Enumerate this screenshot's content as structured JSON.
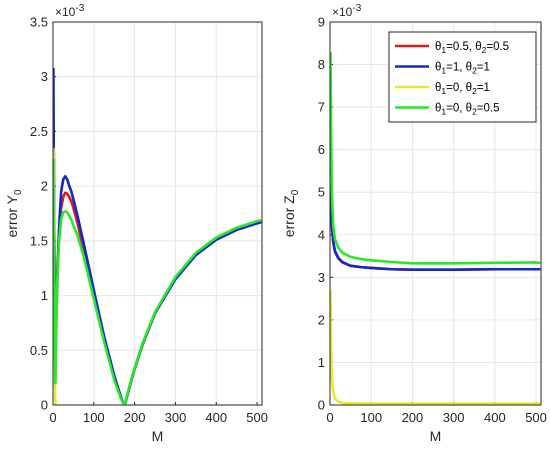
{
  "chart_data": [
    {
      "type": "line",
      "title": "",
      "xlabel": "M",
      "ylabel": "error Y",
      "ylabel_subscript": "0",
      "y_multiplier": "×10",
      "y_multiplier_exp": "-3",
      "xlim": [
        0,
        512
      ],
      "ylim": [
        0,
        3.5
      ],
      "x_ticks": [
        "0",
        "100",
        "200",
        "300",
        "400",
        "500"
      ],
      "y_ticks": [
        "0",
        "0.5",
        "1",
        "1.5",
        "2",
        "2.5",
        "3",
        "3.5"
      ],
      "grid": true,
      "series": [
        {
          "id": "s1",
          "color": "#d62020",
          "x": [
            1,
            2,
            4,
            6,
            10,
            15,
            20,
            25,
            30,
            35,
            40,
            45,
            50,
            60,
            75,
            100,
            125,
            150,
            165,
            172,
            176,
            180,
            185,
            190,
            200,
            220,
            250,
            300,
            350,
            400,
            450,
            500,
            510
          ],
          "y": [
            0.8,
            2.3,
            1.0,
            0.4,
            1.2,
            1.6,
            1.8,
            1.9,
            1.94,
            1.93,
            1.9,
            1.86,
            1.8,
            1.66,
            1.42,
            1.0,
            0.6,
            0.25,
            0.08,
            0.02,
            0.0,
            0.06,
            0.13,
            0.2,
            0.33,
            0.56,
            0.84,
            1.16,
            1.38,
            1.52,
            1.61,
            1.67,
            1.68
          ]
        },
        {
          "id": "s2",
          "color": "#1428c8",
          "x": [
            1,
            2,
            3,
            5,
            8,
            12,
            16,
            20,
            25,
            30,
            35,
            40,
            45,
            50,
            60,
            75,
            100,
            125,
            150,
            165,
            172,
            176,
            180,
            185,
            190,
            200,
            220,
            250,
            300,
            350,
            400,
            450,
            500,
            510
          ],
          "y": [
            3.08,
            2.2,
            1.6,
            0.9,
            0.8,
            1.3,
            1.7,
            1.95,
            2.06,
            2.09,
            2.06,
            2.0,
            1.95,
            1.88,
            1.73,
            1.48,
            1.05,
            0.63,
            0.27,
            0.09,
            0.02,
            0.0,
            0.06,
            0.13,
            0.2,
            0.33,
            0.56,
            0.84,
            1.15,
            1.37,
            1.51,
            1.6,
            1.66,
            1.67
          ]
        },
        {
          "id": "s3",
          "color": "#e8e830",
          "x": [
            1,
            2,
            3,
            4,
            6
          ],
          "y": [
            2.35,
            2.2,
            1.3,
            0.3,
            0.0
          ]
        },
        {
          "id": "s4",
          "color": "#28e828",
          "x": [
            1,
            2,
            4,
            6,
            10,
            15,
            20,
            25,
            30,
            35,
            40,
            45,
            50,
            60,
            75,
            100,
            125,
            150,
            165,
            172,
            176,
            180,
            185,
            190,
            200,
            220,
            250,
            300,
            350,
            400,
            450,
            500,
            510
          ],
          "y": [
            2.25,
            1.8,
            0.6,
            0.2,
            1.1,
            1.5,
            1.7,
            1.76,
            1.77,
            1.76,
            1.73,
            1.69,
            1.64,
            1.55,
            1.36,
            0.97,
            0.58,
            0.23,
            0.07,
            0.02,
            0.0,
            0.07,
            0.14,
            0.21,
            0.34,
            0.57,
            0.85,
            1.17,
            1.39,
            1.53,
            1.62,
            1.68,
            1.69
          ]
        }
      ]
    },
    {
      "type": "line",
      "title": "",
      "xlabel": "M",
      "ylabel": "error Z",
      "ylabel_subscript": "0",
      "y_multiplier": "×10",
      "y_multiplier_exp": "-3",
      "xlim": [
        0,
        512
      ],
      "ylim": [
        0,
        9
      ],
      "x_ticks": [
        "0",
        "100",
        "200",
        "300",
        "400",
        "500"
      ],
      "y_ticks": [
        "0",
        "1",
        "2",
        "3",
        "4",
        "5",
        "6",
        "7",
        "8",
        "9"
      ],
      "grid": true,
      "legend_position": "top-right",
      "legend": [
        {
          "color": "#d62020",
          "a": "θ",
          "as": "1",
          "av": "=0.5, ",
          "b": "θ",
          "bs": "2",
          "bv": "=0.5"
        },
        {
          "color": "#1428c8",
          "a": "θ",
          "as": "1",
          "av": "=1, ",
          "b": "θ",
          "bs": "2",
          "bv": "=1"
        },
        {
          "color": "#e8e830",
          "a": "θ",
          "as": "1",
          "av": "=0, ",
          "b": "θ",
          "bs": "2",
          "bv": "=1"
        },
        {
          "color": "#28e828",
          "a": "θ",
          "as": "1",
          "av": "=0, ",
          "b": "θ",
          "bs": "2",
          "bv": "=0.5"
        }
      ],
      "series": [
        {
          "id": "s1",
          "color": "#d62020",
          "x": [
            1,
            2,
            3,
            5,
            8,
            12,
            20,
            30,
            50,
            75,
            100,
            150,
            200,
            300,
            400,
            500,
            510
          ],
          "y": [
            6.0,
            5.2,
            4.6,
            4.1,
            3.8,
            3.6,
            3.45,
            3.35,
            3.27,
            3.24,
            3.22,
            3.19,
            3.18,
            3.18,
            3.19,
            3.19,
            3.19
          ]
        },
        {
          "id": "s2",
          "color": "#1428c8",
          "x": [
            1,
            2,
            3,
            5,
            8,
            12,
            20,
            30,
            50,
            75,
            100,
            150,
            200,
            300,
            400,
            500,
            510
          ],
          "y": [
            6.1,
            5.3,
            4.7,
            4.2,
            3.85,
            3.62,
            3.46,
            3.36,
            3.27,
            3.24,
            3.22,
            3.19,
            3.18,
            3.18,
            3.19,
            3.19,
            3.19
          ]
        },
        {
          "id": "s3",
          "color": "#e8e830",
          "x": [
            1,
            2,
            3,
            5,
            8,
            12,
            20,
            30,
            50,
            100,
            200,
            300,
            400,
            500,
            510
          ],
          "y": [
            2.7,
            2.0,
            1.2,
            0.6,
            0.3,
            0.15,
            0.08,
            0.05,
            0.04,
            0.03,
            0.03,
            0.03,
            0.03,
            0.03,
            0.03
          ]
        },
        {
          "id": "s4",
          "color": "#28e828",
          "x": [
            1,
            2,
            3,
            4,
            6,
            8,
            12,
            20,
            30,
            50,
            75,
            100,
            150,
            200,
            300,
            400,
            500,
            510
          ],
          "y": [
            8.3,
            7.2,
            6.1,
            5.3,
            4.6,
            4.2,
            3.9,
            3.7,
            3.58,
            3.48,
            3.43,
            3.4,
            3.36,
            3.33,
            3.33,
            3.34,
            3.35,
            3.34
          ]
        }
      ]
    }
  ]
}
